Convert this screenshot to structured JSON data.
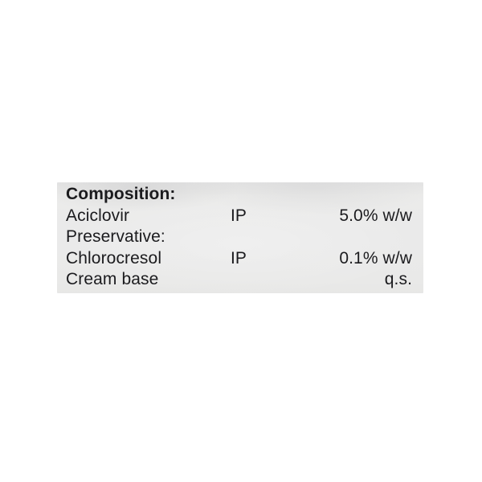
{
  "photo": {
    "background_color": "#ffffff",
    "label_background_color": "#eaeaea",
    "text_color": "#1b1b1e"
  },
  "label": {
    "title": "Composition:",
    "rows": [
      {
        "name": "Aciclovir",
        "standard": "IP",
        "value": "5.0% w/w"
      },
      {
        "name": "Preservative:",
        "standard": "",
        "value": ""
      },
      {
        "name": "Chlorocresol",
        "standard": "IP",
        "value": "0.1% w/w"
      },
      {
        "name": "Cream base",
        "standard": "",
        "value": "q.s."
      }
    ]
  }
}
